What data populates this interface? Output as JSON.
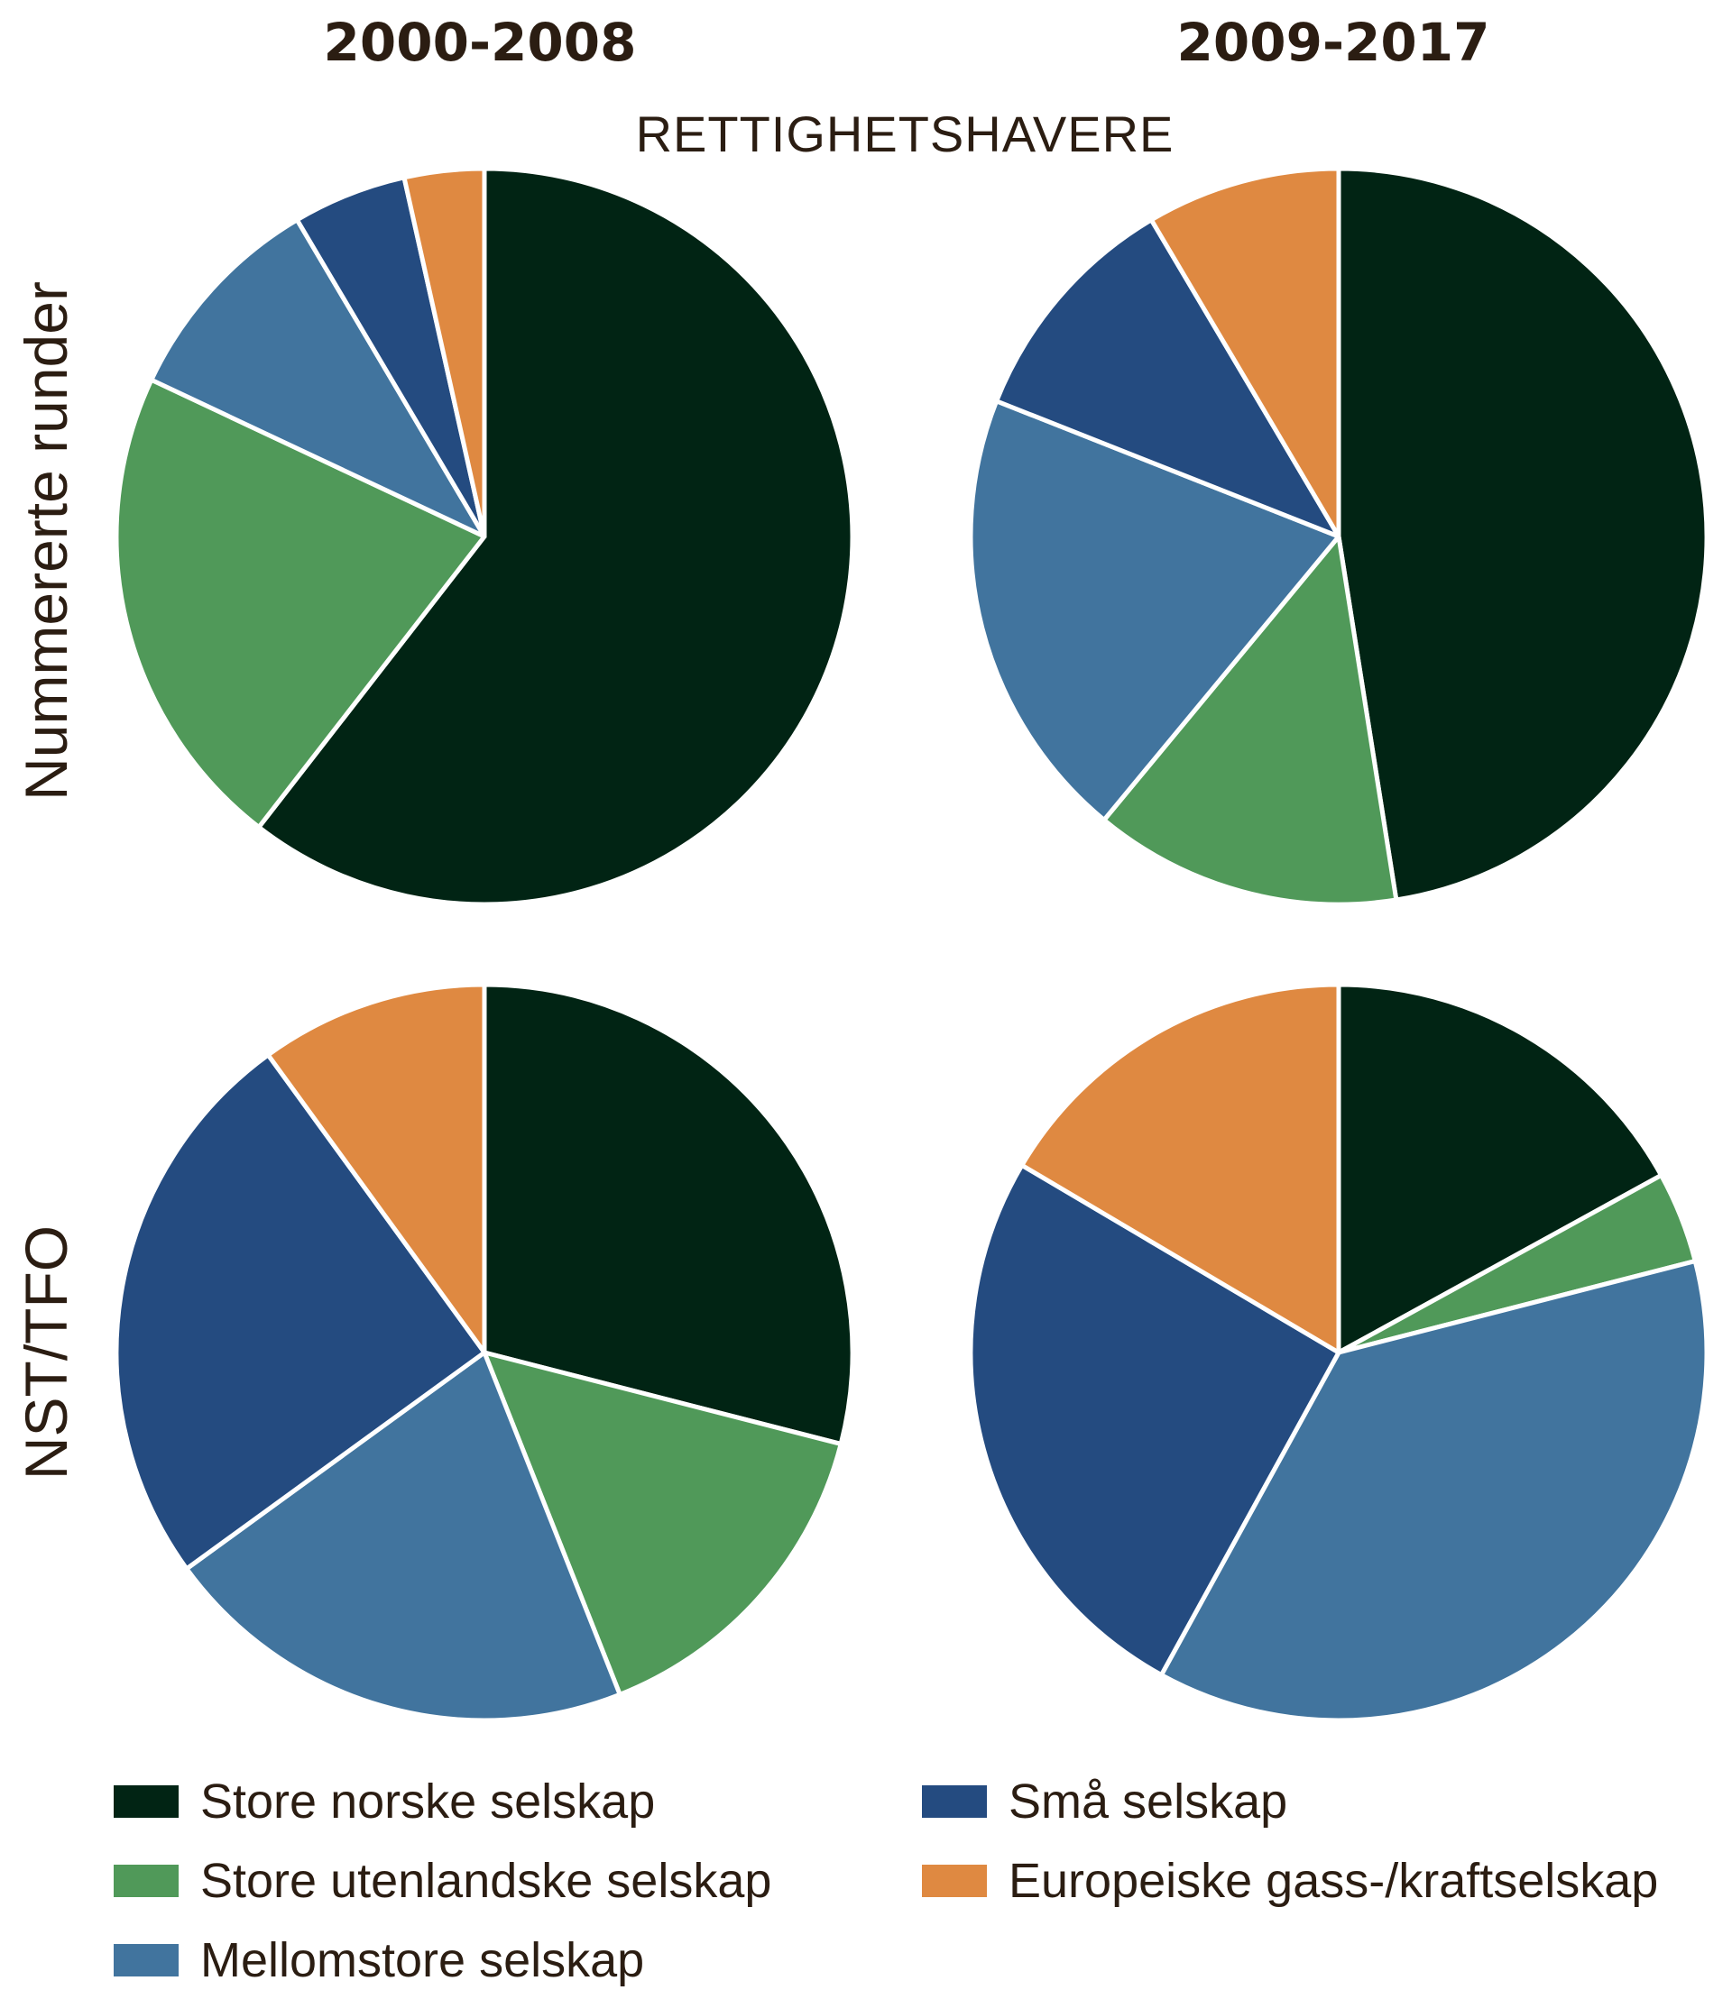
{
  "title": "RETTIGHETSHAVERE",
  "colors": {
    "Store norske selskap": "#012414",
    "Store utenlandske selskap": "#509959",
    "Mellomstore selskap": "#41749e",
    "Små selskap": "#244b80",
    "Europeiske gass-/kraftselskap": "#df8941"
  },
  "legend": [
    "Store norske selskap",
    "Store utenlandske selskap",
    "Mellomstore selskap",
    "Små selskap",
    "Europeiske gass-/kraftselskap"
  ],
  "chart_data": [
    {
      "type": "pie",
      "title": "2000-2008",
      "row_label": "Nummererte runder",
      "labels": [
        "Store norske selskap",
        "Store utenlandske selskap",
        "Mellomstore selskap",
        "Små selskap",
        "Europeiske gass-/kraftselskap"
      ],
      "values": [
        60.5,
        21.5,
        9.5,
        5,
        3.5
      ],
      "legend_position": "bottom"
    },
    {
      "type": "pie",
      "title": "2009-2017",
      "row_label": "Nummererte runder",
      "labels": [
        "Store norske selskap",
        "Store utenlandske selskap",
        "Mellomstore selskap",
        "Små selskap",
        "Europeiske gass-/kraftselskap"
      ],
      "values": [
        47.5,
        13.5,
        20,
        10.5,
        8.5
      ],
      "legend_position": "bottom"
    },
    {
      "type": "pie",
      "title": "2000-2008",
      "row_label": "NST/TFO",
      "labels": [
        "Store norske selskap",
        "Store utenlandske selskap",
        "Mellomstore selskap",
        "Små selskap",
        "Europeiske gass-/kraftselskap"
      ],
      "values": [
        29,
        15,
        21,
        25,
        10
      ],
      "legend_position": "bottom"
    },
    {
      "type": "pie",
      "title": "2009-2017",
      "row_label": "NST/TFO",
      "labels": [
        "Store norske selskap",
        "Store utenlandske selskap",
        "Mellomstore selskap",
        "Små selskap",
        "Europeiske gass-/kraftselskap"
      ],
      "values": [
        17,
        4,
        37,
        25.5,
        16.5
      ],
      "legend_position": "bottom"
    }
  ]
}
